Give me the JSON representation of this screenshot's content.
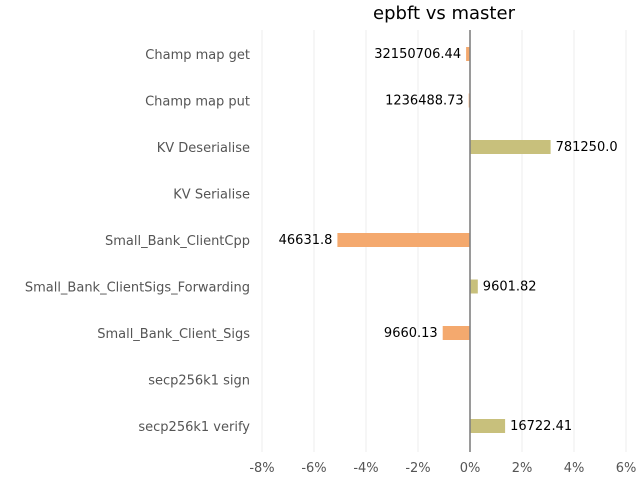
{
  "chart_data": {
    "type": "bar",
    "orientation": "horizontal",
    "title": "epbft vs master",
    "xlabel": "",
    "ylabel": "",
    "categories": [
      "Champ map get",
      "Champ map put",
      "KV Deserialise",
      "KV Serialise",
      "Small_Bank_ClientCpp",
      "Small_Bank_ClientSigs_Forwarding",
      "Small_Bank_Client_Sigs",
      "secp256k1 sign",
      "secp256k1 verify"
    ],
    "values": [
      -0.15,
      -0.05,
      3.1,
      0,
      -5.1,
      0.3,
      -1.05,
      0,
      1.35
    ],
    "data_labels": [
      "32150706.44",
      "1236488.73",
      "781250.0",
      "",
      "46631.8",
      "9601.82",
      "9660.13",
      "",
      "16722.41"
    ],
    "bar_colors": [
      "#f4a96e",
      "#f4a96e",
      "#c8c07c",
      "#c8c07c",
      "#f4a96e",
      "#c8c07c",
      "#f4a96e",
      "#c8c07c",
      "#c8c07c"
    ],
    "xlim": [
      -8,
      6
    ],
    "xticks": [
      -8,
      -6,
      -4,
      -2,
      0,
      2,
      4,
      6
    ],
    "xtick_labels": [
      "-8%",
      "-6%",
      "-4%",
      "-2%",
      "0%",
      "2%",
      "4%",
      "6%"
    ],
    "grid": true,
    "colors": {
      "negative": "#f4a96e",
      "positive": "#c8c07c",
      "zero_line": "#808080",
      "grid": "#eeeeee"
    }
  }
}
